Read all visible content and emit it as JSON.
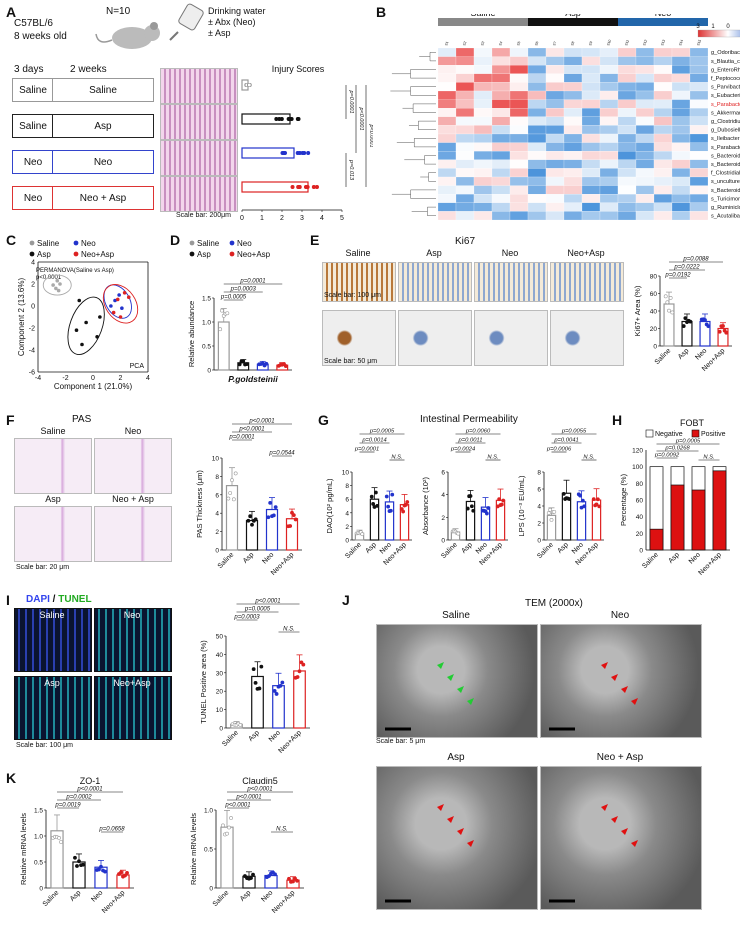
{
  "panelA": {
    "label": "A",
    "mouse": "C57BL/6",
    "age": "8 weeks old",
    "n": "N=10",
    "water": [
      "Drinking water",
      "± Abx (Neo)",
      "± Asp"
    ],
    "phase1": "3 days",
    "phase2": "2 weeks",
    "groups": [
      {
        "a": "Saline",
        "b": "Saline",
        "color": "#999999"
      },
      {
        "a": "Saline",
        "b": "Asp",
        "color": "#222222"
      },
      {
        "a": "Neo",
        "b": "Neo",
        "color": "#3344cc"
      },
      {
        "a": "Neo",
        "b": "Neo + Asp",
        "color": "#dd3333"
      }
    ],
    "scalebar": "Scale bar: 200μm",
    "chart_title": "Injury Scores",
    "pvals": [
      "p<0.0001",
      "p<0.0001",
      "p=0.0001",
      "p=0.013"
    ],
    "axis_ticks": [
      "0",
      "1",
      "2",
      "3",
      "4",
      "5"
    ]
  },
  "panelB": {
    "label": "B",
    "groups": [
      "Saline",
      "Asp",
      "Neo"
    ],
    "group_colors": [
      "#888888",
      "#111111",
      "#2266aa"
    ],
    "legend_ticks": [
      "3",
      "1",
      "0",
      "-1",
      "-3"
    ],
    "legend_title": "Z-score",
    "taxa": [
      "g_Odoribacter",
      "s_Blautia_coccoides",
      "g_EnteroRhabdus",
      "f_Peptococcaceae",
      "s_Parvibacter_caecicola",
      "s_Eubacterium_ventriosum",
      "s_Parabacteroides_goldsteinii",
      "s_Akkermansia_muciniphila",
      "g_Clostridium_sp",
      "g_Dubosiella",
      "s_Ileibacterium_valens",
      "s_Parabacteroides_distasonis",
      "s_Bacteroides_vulgatus",
      "s_Bacteroides_nordii",
      "f_Clostridiales_vadinBB60",
      "s_uncultured_Parabacteroides",
      "s_Bacteroides_faecichinchillae",
      "s_Turicimonas_muris",
      "g_Ruminiclostridium_9",
      "s_Acutalibacter_muris"
    ],
    "highlight_taxon": 6
  },
  "panelC": {
    "label": "C",
    "legend": [
      "Saline",
      "Neo",
      "Asp",
      "Neo+Asp"
    ],
    "stat": "PERMANOVA(Saline vs Asp)",
    "stat_p": "p<0.0001",
    "method": "PCA",
    "chart_data": {
      "type": "scatter",
      "xlabel": "Component 1 (21.0%)",
      "ylabel": "Component 2 (13.6%)",
      "xlim": [
        -4,
        4
      ],
      "ylim": [
        -6,
        4
      ],
      "xticks": [
        "-4",
        "-2",
        "0",
        "2",
        "4"
      ],
      "yticks": [
        "4",
        "2",
        "0",
        "-2",
        "-4",
        "-6"
      ],
      "series": [
        {
          "name": "Saline",
          "color": "#aaaaaa",
          "points": [
            [
              -2.9,
              1.9
            ],
            [
              -2.6,
              2.3
            ],
            [
              -2.7,
              1.6
            ],
            [
              -2.4,
              2.0
            ],
            [
              -2.5,
              1.4
            ]
          ]
        },
        {
          "name": "Asp",
          "color": "#111111",
          "points": [
            [
              -1.0,
              0.5
            ],
            [
              -0.5,
              -1.5
            ],
            [
              0.3,
              -2.8
            ],
            [
              -0.8,
              -3.5
            ],
            [
              0.5,
              -1.0
            ],
            [
              -1.2,
              -2.2
            ]
          ]
        },
        {
          "name": "Neo",
          "color": "#2233cc",
          "points": [
            [
              1.6,
              0.5
            ],
            [
              1.9,
              1.0
            ],
            [
              2.1,
              -0.2
            ],
            [
              1.3,
              0.0
            ]
          ]
        },
        {
          "name": "Neo+Asp",
          "color": "#dd2222",
          "points": [
            [
              1.8,
              0.6
            ],
            [
              2.3,
              1.2
            ],
            [
              1.5,
              -0.6
            ],
            [
              2.6,
              0.8
            ],
            [
              2.0,
              -1.0
            ]
          ]
        }
      ]
    }
  },
  "panelD": {
    "label": "D",
    "legend": [
      "Saline",
      "Neo",
      "Asp",
      "Neo+Asp"
    ],
    "pvals": [
      "p=0.0001",
      "p=0.0003",
      "p=0.0005"
    ],
    "species": "P.goldsteinii",
    "chart_data": {
      "type": "bar",
      "categories": [
        "Saline",
        "Asp",
        "Neo",
        "Neo+Asp"
      ],
      "values": [
        1.0,
        0.15,
        0.12,
        0.1
      ],
      "ylabel": "Relative abundance",
      "ylim": [
        0,
        1.5
      ],
      "yticks": [
        "0",
        "0.5",
        "1.0",
        "1.5"
      ]
    }
  },
  "panelE": {
    "label": "E",
    "title": "Ki67",
    "groups": [
      "Saline",
      "Asp",
      "Neo",
      "Neo+Asp"
    ],
    "scalebar1": "Scale bar: 100 μm",
    "scalebar2": "Scale bar: 50 μm",
    "pvals": [
      "p=0.0088",
      "p=0.0222",
      "p=0.0192"
    ],
    "chart_data": {
      "type": "bar",
      "categories": [
        "Saline",
        "Asp",
        "Neo",
        "Neo+Asp"
      ],
      "values": [
        48,
        28,
        28,
        20
      ],
      "ylabel": "Ki67+ Area (%)",
      "ylim": [
        0,
        80
      ],
      "yticks": [
        "0",
        "20",
        "40",
        "60",
        "80"
      ]
    }
  },
  "panelF": {
    "label": "F",
    "title": "PAS",
    "groups": [
      "Saline",
      "Neo",
      "Asp",
      "Neo + Asp"
    ],
    "scalebar": "Scale bar: 20 μm",
    "pvals": [
      "p<0.0001",
      "p<0.0001",
      "p=0.0001",
      "p=0.0544"
    ],
    "chart_data": {
      "type": "bar",
      "categories": [
        "Saline",
        "Asp",
        "Neo",
        "Neo+Asp"
      ],
      "values": [
        7.0,
        3.2,
        4.4,
        3.4
      ],
      "ylabel": "PAS Thickness (μm)",
      "ylim": [
        0,
        10
      ],
      "yticks": [
        "0",
        "2",
        "4",
        "6",
        "8",
        "10"
      ]
    }
  },
  "panelG": {
    "label": "G",
    "title": "Intestinal Permeability",
    "categories": [
      "Saline",
      "Asp",
      "Neo",
      "Neo+Asp"
    ],
    "charts": [
      {
        "ylabel": "DAO(10² pg/mL)",
        "values": [
          1.0,
          6.0,
          5.6,
          5.2
        ],
        "ylim": [
          0,
          10
        ],
        "yticks": [
          "0",
          "2",
          "4",
          "6",
          "8",
          "10"
        ],
        "pvals": [
          "p=0.0005",
          "p=0.0014",
          "p=0.0001",
          "N.S."
        ]
      },
      {
        "ylabel": "Absorbance (10²)",
        "values": [
          0.7,
          3.4,
          2.9,
          3.5
        ],
        "ylim": [
          0,
          6
        ],
        "yticks": [
          "0",
          "2",
          "4",
          "6"
        ],
        "pvals": [
          "p=0.0060",
          "p=0.0011",
          "p=0.0024",
          "N.S."
        ]
      },
      {
        "ylabel": "LPS (10⁻³ EU/mL)",
        "values": [
          2.9,
          5.5,
          4.5,
          4.7
        ],
        "ylim": [
          0,
          8
        ],
        "yticks": [
          "0",
          "2",
          "4",
          "6",
          "8"
        ],
        "pvals": [
          "p=0.0055",
          "p=0.0041",
          "p=0.0006",
          "N.S."
        ]
      }
    ]
  },
  "panelH": {
    "label": "H",
    "title": "FOBT",
    "legend": [
      "Negative",
      "Positive"
    ],
    "pvals": [
      "p=0.0005",
      "p=0.0268",
      "p=0.0092",
      "N.S."
    ],
    "chart_data": {
      "type": "bar",
      "categories": [
        "Saline",
        "Asp",
        "Neo",
        "Neo+Asp"
      ],
      "values": [
        25,
        78,
        72,
        95
      ],
      "ylabel": "Percentage (%)",
      "ylim": [
        0,
        120
      ],
      "yticks": [
        "0",
        "20",
        "40",
        "60",
        "80",
        "100",
        "120"
      ]
    }
  },
  "panelI": {
    "label": "I",
    "title_a": "DAPI",
    "title_sep": " / ",
    "title_b": "TUNEL",
    "groups": [
      "Saline",
      "Neo",
      "Asp",
      "Neo+Asp"
    ],
    "scalebar": "Scale bar: 100 μm",
    "pvals": [
      "p<0.0001",
      "p=0.0005",
      "p=0.0003",
      "N.S."
    ],
    "chart_data": {
      "type": "bar",
      "categories": [
        "Saline",
        "Asp",
        "Neo",
        "Neo+Asp"
      ],
      "values": [
        2,
        28,
        23,
        31
      ],
      "ylabel": "TUNEL Positive area (%)",
      "ylim": [
        0,
        50
      ],
      "yticks": [
        "0",
        "10",
        "20",
        "30",
        "40",
        "50"
      ]
    }
  },
  "panelJ": {
    "label": "J",
    "title": "TEM (2000x)",
    "groups": [
      "Saline",
      "Neo",
      "Asp",
      "Neo + Asp"
    ],
    "scalebar": "Scale bar: 5 μm"
  },
  "panelK": {
    "label": "K",
    "categories": [
      "Saline",
      "Asp",
      "Neo",
      "Neo+Asp"
    ],
    "charts": [
      {
        "title": "ZO-1",
        "ylabel": "Relative mRNA levels",
        "values": [
          1.1,
          0.5,
          0.4,
          0.25
        ],
        "ylim": [
          0,
          1.5
        ],
        "yticks": [
          "0",
          "0.5",
          "1.0",
          "1.5"
        ],
        "pvals": [
          "p<0.0001",
          "p=0.0002",
          "p=0.0019",
          "p=0.0658"
        ]
      },
      {
        "title": "Claudin5",
        "ylabel": "Relative mRNA levels",
        "values": [
          0.78,
          0.15,
          0.16,
          0.1
        ],
        "ylim": [
          0,
          1.0
        ],
        "yticks": [
          "0",
          "0.5",
          "1.0"
        ],
        "pvals": [
          "p<0.0001",
          "p<0.0001",
          "p<0.0001",
          "N.S."
        ]
      }
    ]
  },
  "colors": {
    "saline": "#999999",
    "asp": "#111111",
    "neo": "#2233cc",
    "neoasp": "#dd2222"
  }
}
